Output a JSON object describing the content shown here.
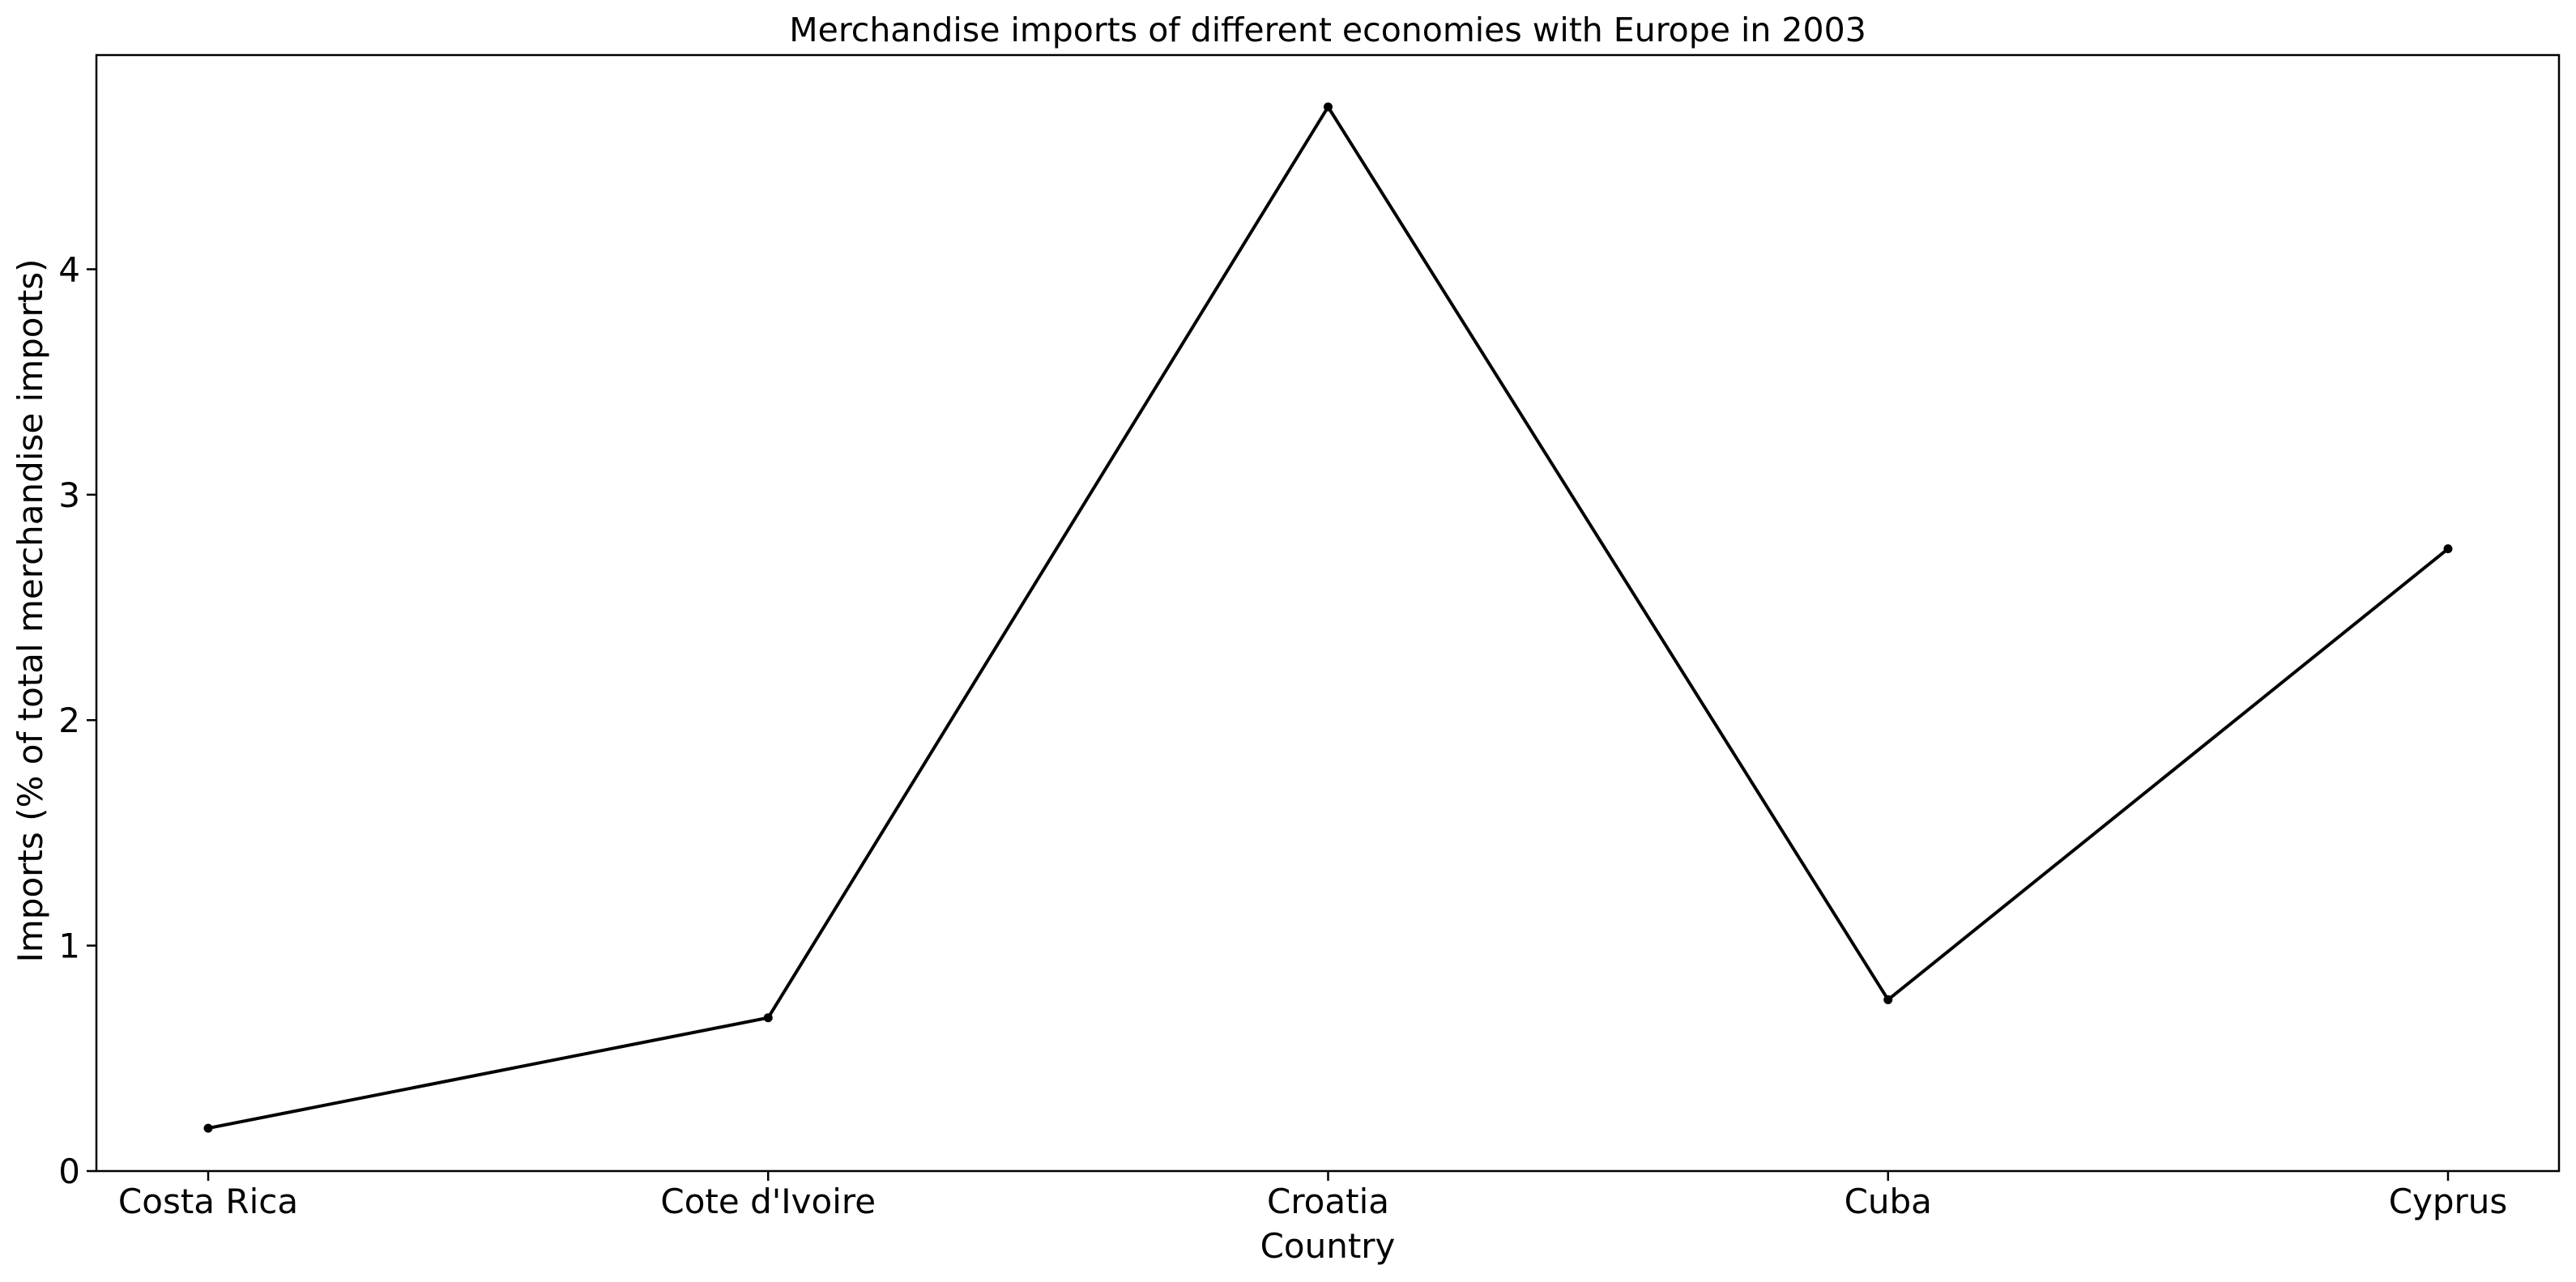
{
  "chart_data": {
    "type": "line",
    "title": "Merchandise imports of different economies with Europe in 2003",
    "xlabel": "Country",
    "ylabel": "Imports (% of total merchandise imports)",
    "categories": [
      "Costa Rica",
      "Cote d'Ivoire",
      "Croatia",
      "Cuba",
      "Cyprus"
    ],
    "values": [
      0.19,
      0.68,
      4.72,
      0.76,
      2.76
    ],
    "ylim": [
      0,
      4.95
    ],
    "yticks": [
      0,
      1,
      2,
      3,
      4
    ],
    "grid": false,
    "legend": "none",
    "line_color": "#000000",
    "marker_color": "#000000"
  }
}
